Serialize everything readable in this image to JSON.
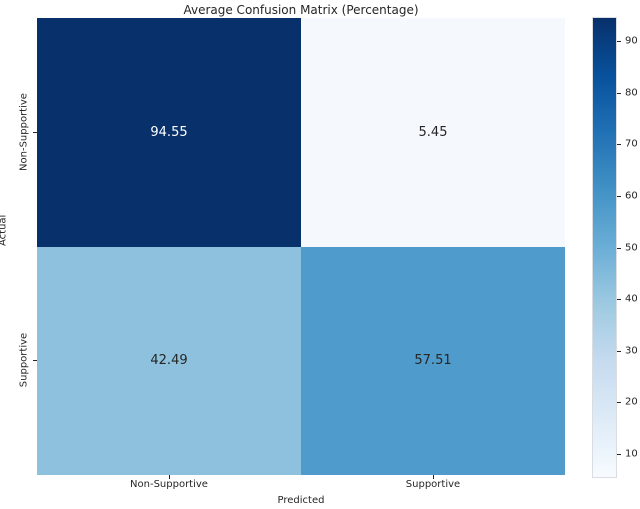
{
  "chart_data": {
    "type": "heatmap",
    "title": "Average Confusion Matrix (Percentage)",
    "xlabel": "Predicted",
    "ylabel": "Actual",
    "x_categories": [
      "Non-Supportive",
      "Supportive"
    ],
    "y_categories": [
      "Non-Supportive",
      "Supportive"
    ],
    "matrix": [
      [
        94.55,
        5.45
      ],
      [
        42.49,
        57.51
      ]
    ],
    "cell_labels": [
      [
        "94.55",
        "5.45"
      ],
      [
        "42.49",
        "57.51"
      ]
    ],
    "cell_colors": [
      [
        "#08306b",
        "#f5f9fe"
      ],
      [
        "#8dc1dd",
        "#4f9bcb"
      ]
    ],
    "cell_text_colors": [
      [
        "#ffffff",
        "#262626"
      ],
      [
        "#262626",
        "#262626"
      ]
    ],
    "colormap": "Blues",
    "colorbar": {
      "vmin": 5.45,
      "vmax": 94.55,
      "ticks": [
        10,
        20,
        30,
        40,
        50,
        60,
        70,
        80,
        90
      ],
      "gradient_stops_top_to_bottom": [
        "#08306b",
        "#08519c",
        "#2171b5",
        "#4292c6",
        "#6baed6",
        "#9ecae1",
        "#c6dbef",
        "#deebf7",
        "#f7fbff"
      ]
    },
    "grid": false,
    "legend": false
  }
}
